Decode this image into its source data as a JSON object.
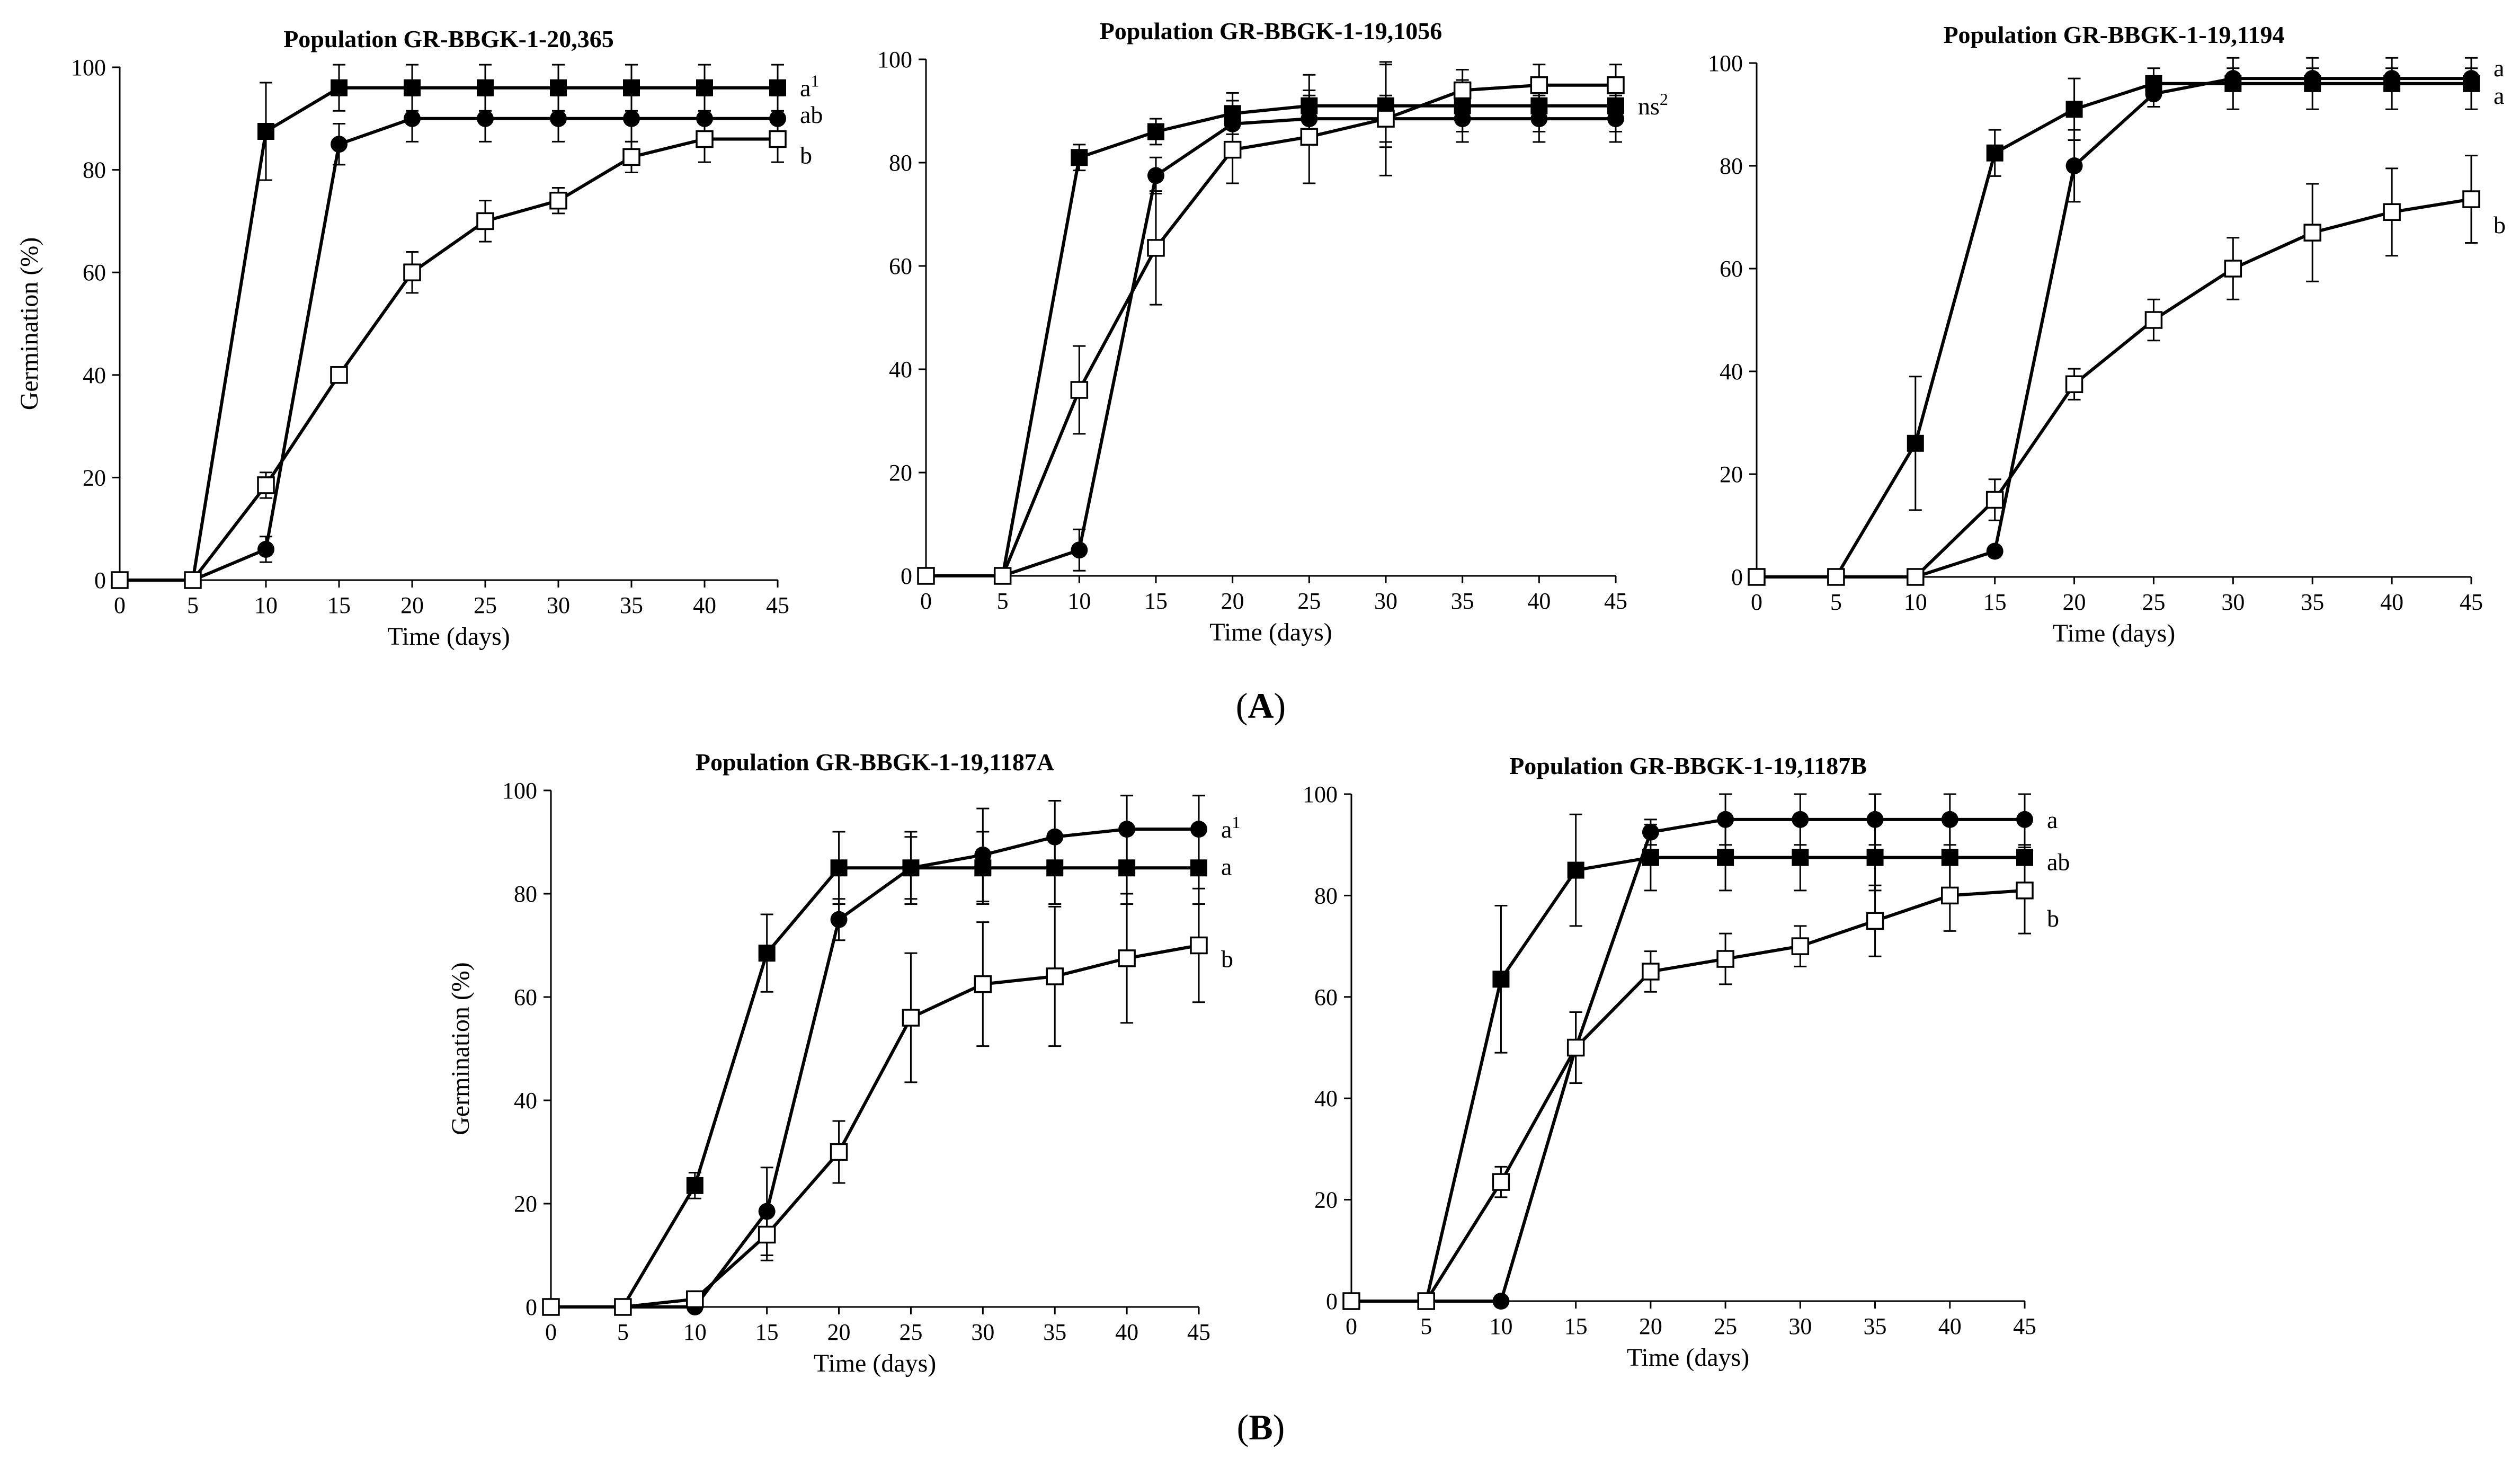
{
  "figure": {
    "panel_labels": [
      {
        "open": "(",
        "letter": "A",
        "close": ")"
      },
      {
        "open": "(",
        "letter": "B",
        "close": ")"
      }
    ]
  },
  "chart_data": [
    {
      "type": "line",
      "title": "Population GR-BBGK-1-20,365",
      "xlabel": "Time (days)",
      "ylabel": "Germination (%)",
      "x": [
        0,
        5,
        10,
        15,
        20,
        25,
        30,
        35,
        40,
        45
      ],
      "xlim": [
        0,
        45
      ],
      "ylim": [
        0,
        100
      ],
      "xticks": [
        0,
        5,
        10,
        15,
        20,
        25,
        30,
        35,
        40,
        45
      ],
      "yticks": [
        0,
        20,
        40,
        60,
        80,
        100
      ],
      "series": [
        {
          "marker": "filled-square",
          "values": [
            0,
            0,
            87.5,
            96,
            96,
            96,
            96,
            96,
            96,
            96
          ],
          "errors": [
            0,
            0,
            9.5,
            4.5,
            4.5,
            4.5,
            4.5,
            4.5,
            4.5,
            4.5
          ],
          "label": "a",
          "sup": "1"
        },
        {
          "marker": "filled-circle",
          "values": [
            0,
            0,
            6,
            85,
            90,
            90,
            90,
            90,
            90,
            90
          ],
          "errors": [
            0,
            0,
            2.5,
            4,
            4.5,
            4.5,
            4.5,
            4.5,
            4.5,
            4.5
          ],
          "label": "ab",
          "sup": ""
        },
        {
          "marker": "open-square",
          "values": [
            0,
            0,
            18.5,
            40,
            60,
            70,
            74,
            82.5,
            86,
            86
          ],
          "errors": [
            0,
            0,
            2.5,
            1.5,
            4,
            4,
            2.5,
            3,
            4.5,
            4.5
          ],
          "label": "b",
          "sup": ""
        }
      ]
    },
    {
      "type": "line",
      "title": "Population GR-BBGK-1-19,1056",
      "xlabel": "Time (days)",
      "ylabel": "",
      "x": [
        0,
        5,
        10,
        15,
        20,
        25,
        30,
        35,
        40,
        45
      ],
      "xlim": [
        0,
        45
      ],
      "ylim": [
        0,
        100
      ],
      "xticks": [
        0,
        5,
        10,
        15,
        20,
        25,
        30,
        35,
        40,
        45
      ],
      "yticks": [
        0,
        20,
        40,
        60,
        80,
        100
      ],
      "series": [
        {
          "marker": "filled-square",
          "values": [
            0,
            0,
            81,
            86,
            89.5,
            91,
            91,
            91,
            91,
            91
          ],
          "errors": [
            0,
            0,
            2.5,
            2.5,
            4,
            6,
            8,
            5,
            5,
            5
          ],
          "label": "ns",
          "sup": "2"
        },
        {
          "marker": "filled-circle",
          "values": [
            0,
            0,
            5,
            77.5,
            87.5,
            88.5,
            88.5,
            88.5,
            88.5,
            88.5
          ],
          "errors": [
            0,
            0,
            4,
            3.5,
            4.5,
            4.5,
            4.5,
            4.5,
            4.5,
            4.5
          ],
          "label": "",
          "sup": ""
        },
        {
          "marker": "open-square",
          "values": [
            0,
            0,
            36,
            63.5,
            82.5,
            85,
            88.5,
            94,
            95,
            95
          ],
          "errors": [
            0,
            0,
            8.5,
            11,
            6.5,
            9,
            11,
            4,
            4,
            4
          ],
          "label": "",
          "sup": ""
        }
      ]
    },
    {
      "type": "line",
      "title": "Population GR-BBGK-1-19,1194",
      "xlabel": "Time (days)",
      "ylabel": "",
      "x": [
        0,
        5,
        10,
        15,
        20,
        25,
        30,
        35,
        40,
        45
      ],
      "xlim": [
        0,
        45
      ],
      "ylim": [
        0,
        100
      ],
      "xticks": [
        0,
        5,
        10,
        15,
        20,
        25,
        30,
        35,
        40,
        45
      ],
      "yticks": [
        0,
        20,
        40,
        60,
        80,
        100
      ],
      "series": [
        {
          "marker": "filled-circle",
          "values": [
            0,
            0,
            0,
            5,
            80,
            94,
            97,
            97,
            97,
            97
          ],
          "errors": [
            0,
            0,
            0,
            0.8,
            7,
            2.5,
            2,
            2,
            2,
            2
          ],
          "label": "a",
          "sup": ""
        },
        {
          "marker": "filled-square",
          "values": [
            0,
            0,
            26,
            82.5,
            91,
            96,
            96,
            96,
            96,
            96
          ],
          "errors": [
            0,
            0,
            13,
            4.5,
            6,
            3,
            5,
            5,
            5,
            5
          ],
          "label": "a",
          "sup": ""
        },
        {
          "marker": "open-square",
          "values": [
            0,
            0,
            0,
            15,
            37.5,
            50,
            60,
            67,
            71,
            73.5
          ],
          "errors": [
            0,
            0,
            0,
            4,
            3,
            4,
            6,
            9.5,
            8.5,
            8.5
          ],
          "label": "b",
          "sup": ""
        }
      ]
    },
    {
      "type": "line",
      "title": "Population GR-BBGK-1-19,1187A",
      "xlabel": "Time (days)",
      "ylabel": "Germination (%)",
      "x": [
        0,
        5,
        10,
        15,
        20,
        25,
        30,
        35,
        40,
        45
      ],
      "xlim": [
        0,
        45
      ],
      "ylim": [
        0,
        100
      ],
      "xticks": [
        0,
        5,
        10,
        15,
        20,
        25,
        30,
        35,
        40,
        45
      ],
      "yticks": [
        0,
        20,
        40,
        60,
        80,
        100
      ],
      "series": [
        {
          "marker": "filled-circle",
          "values": [
            0,
            0,
            0,
            18.5,
            75,
            85,
            87.5,
            91,
            92.5,
            92.5
          ],
          "errors": [
            0,
            0,
            0.8,
            8.5,
            4,
            6,
            9,
            7,
            6.5,
            6.5
          ],
          "label": "a",
          "sup": "1"
        },
        {
          "marker": "filled-square",
          "values": [
            0,
            0,
            23.5,
            68.5,
            85,
            85,
            85,
            85,
            85,
            85
          ],
          "errors": [
            0,
            0,
            2.5,
            7.5,
            7,
            7,
            7,
            7,
            7,
            7
          ],
          "label": "a",
          "sup": ""
        },
        {
          "marker": "open-square",
          "values": [
            0,
            0,
            1.5,
            14,
            30,
            56,
            62.5,
            64,
            67.5,
            70
          ],
          "errors": [
            0,
            0,
            1.5,
            5,
            6,
            12.5,
            12,
            13.5,
            12.5,
            11
          ],
          "label": "b",
          "sup": ""
        }
      ]
    },
    {
      "type": "line",
      "title": "Population GR-BBGK-1-19,1187B",
      "xlabel": "Time (days)",
      "ylabel": "",
      "x": [
        0,
        5,
        10,
        15,
        20,
        25,
        30,
        35,
        40,
        45
      ],
      "xlim": [
        0,
        45
      ],
      "ylim": [
        0,
        100
      ],
      "xticks": [
        0,
        5,
        10,
        15,
        20,
        25,
        30,
        35,
        40,
        45
      ],
      "yticks": [
        0,
        20,
        40,
        60,
        80,
        100
      ],
      "series": [
        {
          "marker": "filled-circle",
          "values": [
            0,
            0,
            0,
            50,
            92.5,
            95,
            95,
            95,
            95,
            95
          ],
          "errors": [
            0,
            0,
            0,
            7,
            2.5,
            5,
            5,
            5,
            5,
            5
          ],
          "label": "a",
          "sup": ""
        },
        {
          "marker": "filled-square",
          "values": [
            0,
            0,
            63.5,
            85,
            87.5,
            87.5,
            87.5,
            87.5,
            87.5,
            87.5
          ],
          "errors": [
            0,
            0,
            14.5,
            11,
            6.5,
            6.5,
            6.5,
            6.5,
            6.5,
            6.5
          ],
          "label": "ab",
          "sup": ""
        },
        {
          "marker": "open-square",
          "values": [
            0,
            0,
            23.5,
            50,
            65,
            67.5,
            70,
            75,
            80,
            81
          ],
          "errors": [
            0,
            0,
            3,
            7,
            4,
            5,
            4,
            7,
            7,
            8.5
          ],
          "label": "b",
          "sup": ""
        }
      ]
    }
  ]
}
